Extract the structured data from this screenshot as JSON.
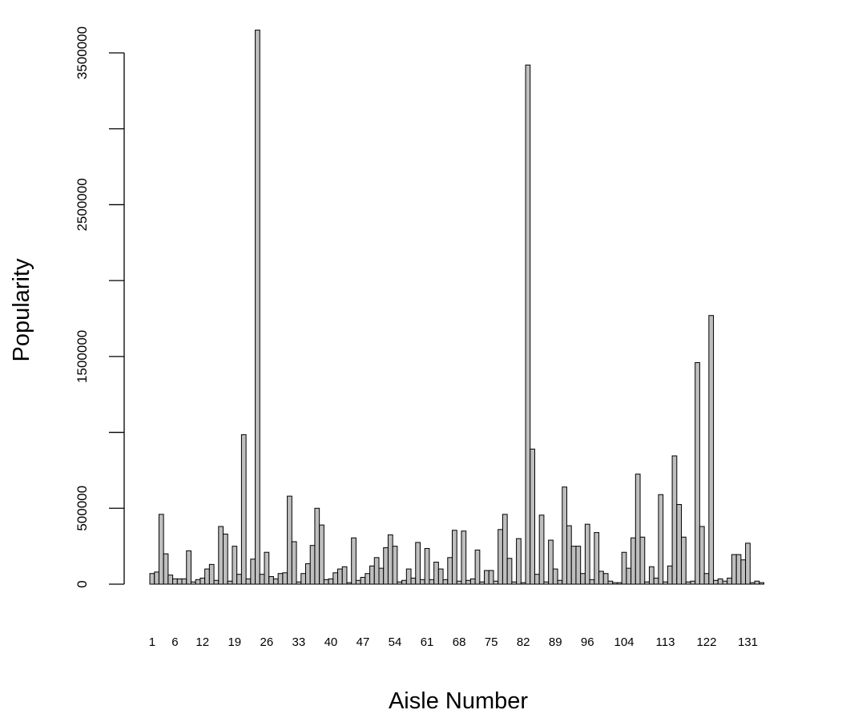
{
  "chart_data": {
    "type": "bar",
    "title": "",
    "xlabel": "Aisle Number",
    "ylabel": "Popularity",
    "ylim": [
      0,
      3700000
    ],
    "y_ticks": [
      0,
      500000,
      1000000,
      1500000,
      2000000,
      2500000,
      3000000,
      3500000
    ],
    "y_tick_labels": [
      "0",
      "500000",
      "",
      "1500000",
      "",
      "2500000",
      "",
      "3500000"
    ],
    "grid": false,
    "legend": "none",
    "bar_color": "#bebebe",
    "bar_border": "#000000",
    "x_tick_labels": [
      {
        "index": 0,
        "label": "1"
      },
      {
        "index": 5,
        "label": "6"
      },
      {
        "index": 11,
        "label": "12"
      },
      {
        "index": 18,
        "label": "19"
      },
      {
        "index": 25,
        "label": "26"
      },
      {
        "index": 32,
        "label": "33"
      },
      {
        "index": 39,
        "label": "40"
      },
      {
        "index": 46,
        "label": "47"
      },
      {
        "index": 53,
        "label": "54"
      },
      {
        "index": 60,
        "label": "61"
      },
      {
        "index": 67,
        "label": "68"
      },
      {
        "index": 74,
        "label": "75"
      },
      {
        "index": 81,
        "label": "82"
      },
      {
        "index": 88,
        "label": "89"
      },
      {
        "index": 95,
        "label": "96"
      },
      {
        "index": 103,
        "label": "104"
      },
      {
        "index": 112,
        "label": "113"
      },
      {
        "index": 121,
        "label": "122"
      },
      {
        "index": 130,
        "label": "131"
      }
    ],
    "values": [
      70000,
      80000,
      460000,
      200000,
      60000,
      35000,
      35000,
      35000,
      220000,
      15000,
      30000,
      40000,
      100000,
      130000,
      25000,
      380000,
      330000,
      20000,
      250000,
      65000,
      985000,
      35000,
      165000,
      3650000,
      65000,
      210000,
      50000,
      35000,
      70000,
      75000,
      580000,
      280000,
      15000,
      70000,
      135000,
      255000,
      500000,
      390000,
      30000,
      35000,
      75000,
      100000,
      115000,
      10000,
      305000,
      25000,
      45000,
      70000,
      120000,
      175000,
      105000,
      240000,
      325000,
      250000,
      15000,
      25000,
      100000,
      40000,
      275000,
      30000,
      235000,
      30000,
      145000,
      100000,
      30000,
      175000,
      355000,
      20000,
      350000,
      25000,
      35000,
      225000,
      15000,
      90000,
      90000,
      20000,
      360000,
      460000,
      170000,
      15000,
      300000,
      10000,
      3420000,
      890000,
      65000,
      455000,
      15000,
      290000,
      100000,
      25000,
      640000,
      385000,
      250000,
      250000,
      70000,
      395000,
      30000,
      340000,
      85000,
      70000,
      20000,
      10000,
      10000,
      210000,
      105000,
      305000,
      725000,
      310000,
      15000,
      115000,
      40000,
      590000,
      15000,
      120000,
      845000,
      525000,
      310000,
      15000,
      20000,
      1460000,
      380000,
      70000,
      1770000,
      25000,
      35000,
      20000,
      40000,
      195000,
      195000,
      160000,
      270000,
      10000,
      20000,
      10000
    ]
  }
}
